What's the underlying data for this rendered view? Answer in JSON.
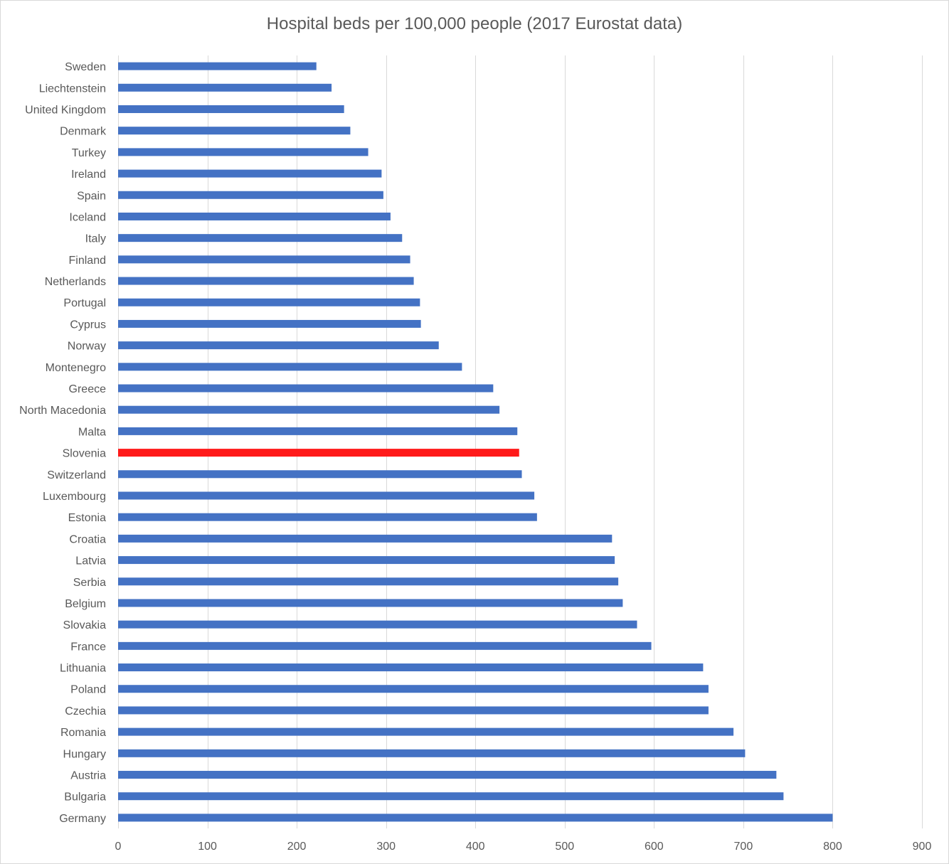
{
  "chart_data": {
    "type": "bar",
    "orientation": "horizontal",
    "title": "Hospital beds per 100,000 people (2017 Eurostat data)",
    "xlabel": "",
    "ylabel": "",
    "xlim": [
      0,
      900
    ],
    "x_ticks": [
      "0",
      "100",
      "200",
      "300",
      "400",
      "500",
      "600",
      "700",
      "800",
      "900"
    ],
    "grid": "vertical",
    "legend": "none",
    "bar_color": "#4472c4",
    "highlight_color": "#ff1a1a",
    "highlight_category": "Slovenia",
    "categories": [
      "Sweden",
      "Liechtenstein",
      "United Kingdom",
      "Denmark",
      "Turkey",
      "Ireland",
      "Spain",
      "Iceland",
      "Italy",
      "Finland",
      "Netherlands",
      "Portugal",
      "Cyprus",
      "Norway",
      "Montenegro",
      "Greece",
      "North Macedonia",
      "Malta",
      "Slovenia",
      "Switzerland",
      "Luxembourg",
      "Estonia",
      "Croatia",
      "Latvia",
      "Serbia",
      "Belgium",
      "Slovakia",
      "France",
      "Lithuania",
      "Poland",
      "Czechia",
      "Romania",
      "Hungary",
      "Austria",
      "Bulgaria",
      "Germany"
    ],
    "values": [
      222,
      239,
      253,
      260,
      280,
      295,
      297,
      305,
      318,
      327,
      331,
      338,
      339,
      359,
      385,
      420,
      427,
      447,
      449,
      452,
      466,
      469,
      553,
      556,
      560,
      565,
      581,
      597,
      655,
      661,
      661,
      689,
      702,
      737,
      745,
      800
    ]
  }
}
